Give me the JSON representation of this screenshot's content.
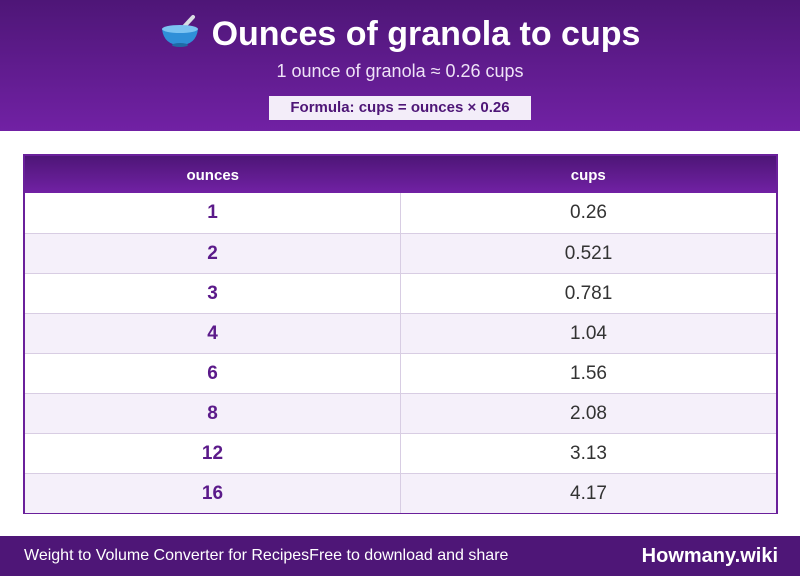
{
  "header": {
    "icon": "bowl-with-spoon-icon",
    "title": "Ounces of granola to cups",
    "subtitle": "1 ounce of granola ≈ 0.26 cups",
    "formula": "Formula: cups = ounces × 0.26"
  },
  "table": {
    "columns": [
      "ounces",
      "cups"
    ],
    "rows": [
      {
        "ounces": "1",
        "cups": "0.26"
      },
      {
        "ounces": "2",
        "cups": "0.521"
      },
      {
        "ounces": "3",
        "cups": "0.781"
      },
      {
        "ounces": "4",
        "cups": "1.04"
      },
      {
        "ounces": "6",
        "cups": "1.56"
      },
      {
        "ounces": "8",
        "cups": "2.08"
      },
      {
        "ounces": "12",
        "cups": "3.13"
      },
      {
        "ounces": "16",
        "cups": "4.17"
      }
    ]
  },
  "footer": {
    "left_text": "Weight to Volume Converter for RecipesFree to download and share",
    "brand": "Howmany.wiki"
  },
  "colors": {
    "accent": "#6a209b",
    "header_dark": "#4e1677",
    "row_alt": "#f5f0fa"
  }
}
